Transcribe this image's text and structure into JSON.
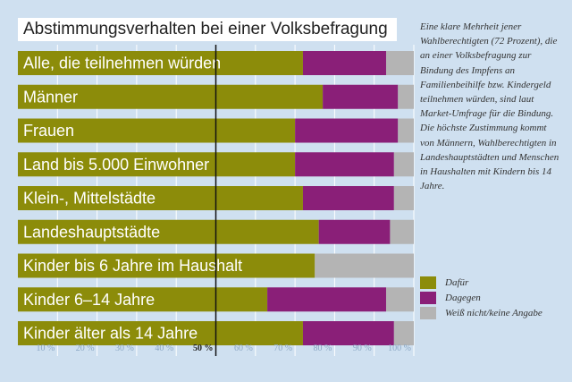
{
  "chart_data": {
    "type": "bar",
    "stacked": true,
    "orientation": "horizontal",
    "title": "Abstimmungsverhalten bei einer Volksbefragung",
    "categories": [
      "Alle, die teilnehmen würden",
      "Männer",
      "Frauen",
      "Land bis 5.000 Einwohner",
      "Klein-, Mittelstädte",
      "Landeshauptstädte",
      "Kinder bis 6 Jahre im Haushalt",
      "Kinder 6–14 Jahre",
      "Kinder älter als 14 Jahre"
    ],
    "series": [
      {
        "name": "Dafür",
        "color": "#8c8c0a",
        "values": [
          72,
          77,
          70,
          70,
          72,
          76,
          75,
          63,
          72
        ]
      },
      {
        "name": "Dagegen",
        "color": "#8a1f78",
        "values": [
          21,
          19,
          26,
          25,
          23,
          18,
          0,
          30,
          23
        ]
      },
      {
        "name": "Weiß nicht/keine Angabe",
        "color": "#b4b4b4",
        "values": [
          7,
          4,
          4,
          5,
          5,
          6,
          25,
          7,
          5
        ]
      }
    ],
    "xticks": [
      "10 %",
      "20 %",
      "30 %",
      "40 %",
      "50 %",
      "60 %",
      "70 %",
      "80 %",
      "90 %",
      "100 %"
    ],
    "xlim": [
      0,
      100
    ],
    "reference_line": 50
  },
  "sidebar_text": "Eine klare Mehrheit jener Wahlberechtigten (72 Prozent), die an einer Volksbefragung zur Bindung des Impfens an Familienbeihilfe bzw. Kindergeld teilnehmen würden, sind laut Market-Umfrage für die Bindung. Die höchste Zustimmung kommt von Männern, Wahlberechtigten in Landeshauptstädten und Menschen in Haushalten mit Kindern bis 14 Jahre.",
  "legend": {
    "dafuer": "Dafür",
    "dagegen": "Dagegen",
    "weiss": "Weiß nicht/keine Angabe"
  }
}
